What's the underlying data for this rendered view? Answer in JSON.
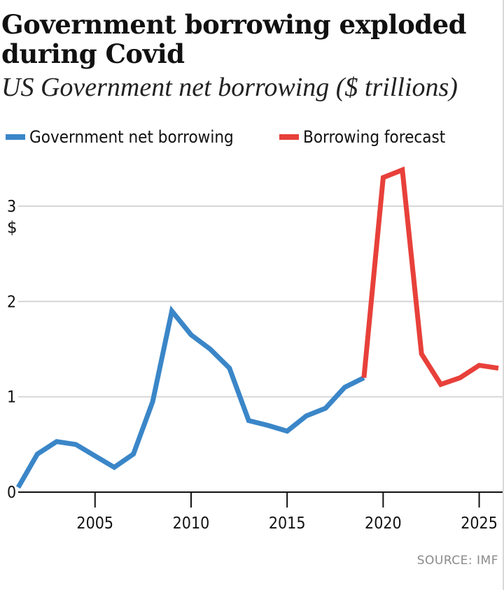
{
  "header": {
    "title": "Government borrowing exploded during Covid",
    "subtitle": "US Government net borrowing ($ trillions)"
  },
  "legend": [
    {
      "label": "Government net borrowing",
      "color": "#3a86c8"
    },
    {
      "label": "Borrowing forecast",
      "color": "#e8403a"
    }
  ],
  "chart_data": {
    "type": "line",
    "title": "Government borrowing exploded during Covid",
    "subtitle": "US Government net borrowing ($ trillions)",
    "xlabel": "",
    "ylabel": "$",
    "xlim": [
      2001,
      2026
    ],
    "ylim": [
      0,
      3.5
    ],
    "x_ticks": [
      2005,
      2010,
      2015,
      2020,
      2025
    ],
    "y_ticks": [
      0,
      1,
      2,
      3
    ],
    "grid": true,
    "legend_position": "top",
    "series": [
      {
        "name": "Government net borrowing",
        "color": "#3a86c8",
        "x": [
          2001,
          2002,
          2003,
          2004,
          2005,
          2006,
          2007,
          2008,
          2009,
          2010,
          2011,
          2012,
          2013,
          2014,
          2015,
          2016,
          2017,
          2018,
          2019
        ],
        "values": [
          0.05,
          0.4,
          0.53,
          0.5,
          0.38,
          0.26,
          0.4,
          0.95,
          1.9,
          1.65,
          1.5,
          1.3,
          0.75,
          0.7,
          0.64,
          0.8,
          0.88,
          1.1,
          1.2
        ]
      },
      {
        "name": "Borrowing forecast",
        "color": "#e8403a",
        "x": [
          2019,
          2020,
          2021,
          2022,
          2023,
          2024,
          2025,
          2026
        ],
        "values": [
          1.2,
          3.3,
          3.38,
          1.45,
          1.13,
          1.2,
          1.33,
          1.3
        ]
      }
    ]
  },
  "axis": {
    "y_unit": "$"
  },
  "source": "SOURCE: IMF"
}
